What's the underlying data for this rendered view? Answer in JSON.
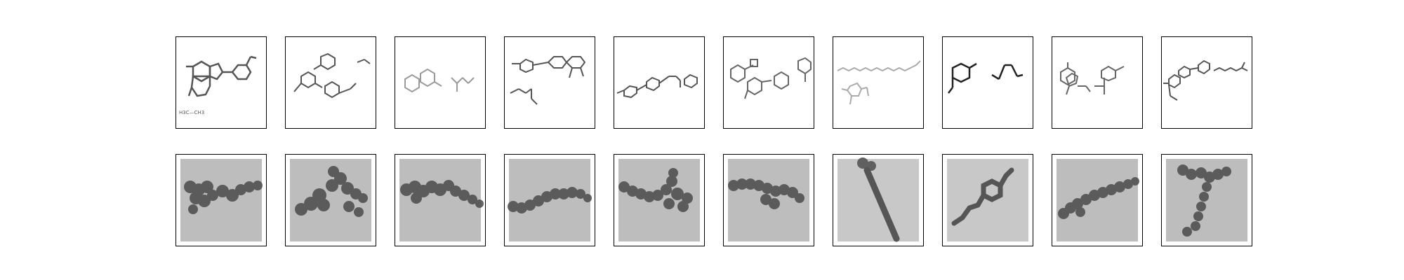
{
  "figure": {
    "rows": 2,
    "columns": 10
  },
  "top_row": [
    {
      "label_fragment": "H3C—CH3"
    },
    {
      "label_fragment": ""
    },
    {
      "label_fragment": ""
    },
    {
      "label_fragment": ""
    },
    {
      "label_fragment": ""
    },
    {
      "label_fragment": ""
    },
    {
      "label_fragment": ""
    },
    {
      "label_fragment": ""
    },
    {
      "label_fragment": ""
    },
    {
      "label_fragment": ""
    }
  ],
  "bottom_row": [
    {
      "label_fragment": ""
    },
    {
      "label_fragment": ""
    },
    {
      "label_fragment": ""
    },
    {
      "label_fragment": ""
    },
    {
      "label_fragment": ""
    },
    {
      "label_fragment": ""
    },
    {
      "label_fragment": ""
    },
    {
      "label_fragment": ""
    },
    {
      "label_fragment": ""
    },
    {
      "label_fragment": ""
    }
  ]
}
